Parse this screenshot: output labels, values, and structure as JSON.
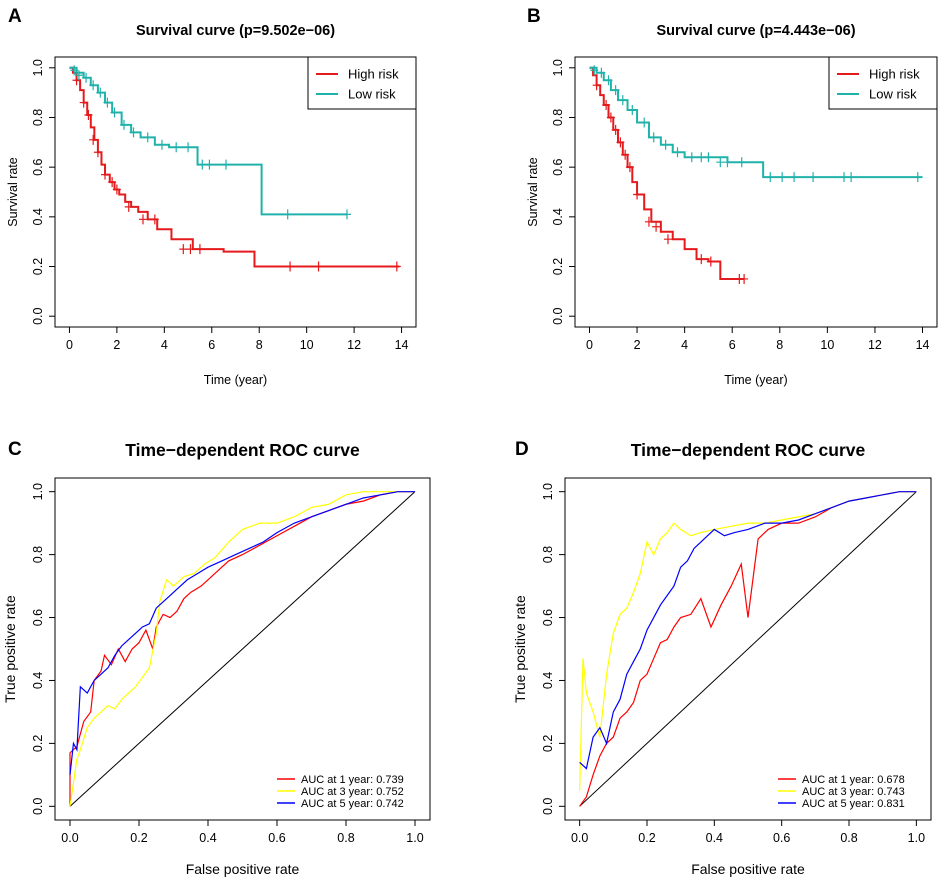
{
  "chart_data": [
    {
      "panel": "A",
      "type": "line",
      "title": "Survival curve (p=9.502e−06)",
      "xlabel": "Time (year)",
      "ylabel": "Survival rate",
      "xlim": [
        0,
        14
      ],
      "ylim": [
        0,
        1
      ],
      "xticks": [
        "0",
        "2",
        "4",
        "6",
        "8",
        "10",
        "12",
        "14"
      ],
      "yticks": [
        "0.0",
        "0.2",
        "0.4",
        "0.6",
        "0.8",
        "1.0"
      ],
      "legend": [
        "High risk",
        "Low risk"
      ],
      "series": [
        {
          "name": "High risk",
          "color": "#e41a1c",
          "x": [
            0,
            0.15,
            0.3,
            0.45,
            0.6,
            0.75,
            0.9,
            1.05,
            1.2,
            1.35,
            1.5,
            1.7,
            1.9,
            2.1,
            2.35,
            2.6,
            2.9,
            3.3,
            3.7,
            4.3,
            5.2,
            6.5,
            7.8,
            13.9
          ],
          "y": [
            1.0,
            0.98,
            0.95,
            0.91,
            0.86,
            0.81,
            0.76,
            0.71,
            0.66,
            0.61,
            0.57,
            0.54,
            0.51,
            0.49,
            0.46,
            0.44,
            0.42,
            0.39,
            0.35,
            0.31,
            0.27,
            0.26,
            0.2,
            0.2
          ],
          "censor_x": [
            0.3,
            0.6,
            0.8,
            1.0,
            1.2,
            1.5,
            1.8,
            2.0,
            2.5,
            3.1,
            3.6,
            4.8,
            5.1,
            5.5,
            9.3,
            10.5,
            13.8
          ],
          "censor_y": [
            0.95,
            0.86,
            0.81,
            0.71,
            0.66,
            0.57,
            0.54,
            0.51,
            0.44,
            0.39,
            0.39,
            0.27,
            0.27,
            0.27,
            0.2,
            0.2,
            0.2
          ]
        },
        {
          "name": "Low risk",
          "color": "#20b2aa",
          "x": [
            0,
            0.3,
            0.6,
            0.9,
            1.2,
            1.5,
            1.8,
            2.2,
            2.6,
            3.0,
            3.6,
            4.2,
            5.4,
            8.1,
            11.7
          ],
          "y": [
            1.0,
            0.98,
            0.96,
            0.93,
            0.9,
            0.86,
            0.82,
            0.77,
            0.74,
            0.72,
            0.69,
            0.68,
            0.61,
            0.41,
            0.41
          ],
          "censor_x": [
            0.2,
            0.4,
            0.7,
            1.0,
            1.3,
            1.6,
            1.9,
            2.3,
            2.7,
            3.3,
            3.9,
            4.5,
            5.0,
            5.6,
            5.9,
            6.6,
            9.2,
            11.7
          ],
          "censor_y": [
            0.99,
            0.97,
            0.96,
            0.93,
            0.9,
            0.86,
            0.82,
            0.77,
            0.74,
            0.72,
            0.69,
            0.68,
            0.68,
            0.61,
            0.61,
            0.61,
            0.41,
            0.41
          ]
        }
      ]
    },
    {
      "panel": "B",
      "type": "line",
      "title": "Survival curve (p=4.443e−06)",
      "xlabel": "Time (year)",
      "ylabel": "Survival rate",
      "xlim": [
        0,
        14
      ],
      "ylim": [
        0,
        1
      ],
      "xticks": [
        "0",
        "2",
        "4",
        "6",
        "8",
        "10",
        "12",
        "14"
      ],
      "yticks": [
        "0.0",
        "0.2",
        "0.4",
        "0.6",
        "0.8",
        "1.0"
      ],
      "legend": [
        "High risk",
        "Low risk"
      ],
      "series": [
        {
          "name": "High risk",
          "color": "#e41a1c",
          "x": [
            0,
            0.15,
            0.3,
            0.45,
            0.6,
            0.8,
            1.0,
            1.2,
            1.4,
            1.6,
            1.8,
            2.0,
            2.3,
            2.6,
            3.0,
            3.5,
            4.0,
            4.5,
            5.0,
            5.5,
            6.5
          ],
          "y": [
            1.0,
            0.97,
            0.93,
            0.89,
            0.85,
            0.8,
            0.75,
            0.7,
            0.65,
            0.6,
            0.54,
            0.49,
            0.43,
            0.38,
            0.34,
            0.31,
            0.27,
            0.23,
            0.22,
            0.15,
            0.15
          ],
          "censor_x": [
            0.3,
            0.7,
            0.9,
            1.1,
            1.3,
            1.5,
            1.7,
            2.0,
            2.5,
            2.8,
            3.3,
            4.7,
            5.1,
            6.3,
            6.5
          ],
          "censor_y": [
            0.93,
            0.85,
            0.8,
            0.75,
            0.7,
            0.65,
            0.6,
            0.49,
            0.38,
            0.36,
            0.31,
            0.23,
            0.22,
            0.15,
            0.15
          ]
        },
        {
          "name": "Low risk",
          "color": "#20b2aa",
          "x": [
            0,
            0.3,
            0.6,
            0.9,
            1.2,
            1.6,
            2.0,
            2.5,
            3.0,
            3.5,
            4.0,
            4.8,
            5.8,
            7.3,
            14
          ],
          "y": [
            1.0,
            0.98,
            0.95,
            0.91,
            0.87,
            0.83,
            0.78,
            0.72,
            0.69,
            0.66,
            0.64,
            0.64,
            0.62,
            0.56,
            0.56
          ],
          "censor_x": [
            0.2,
            0.5,
            0.8,
            1.1,
            1.4,
            1.8,
            2.3,
            2.7,
            3.2,
            3.7,
            4.3,
            4.7,
            5.0,
            5.5,
            5.8,
            6.4,
            7.6,
            8.1,
            8.6,
            9.4,
            10.7,
            11.0,
            13.8
          ],
          "censor_y": [
            0.99,
            0.98,
            0.95,
            0.91,
            0.87,
            0.83,
            0.78,
            0.72,
            0.69,
            0.66,
            0.64,
            0.64,
            0.64,
            0.62,
            0.62,
            0.62,
            0.56,
            0.56,
            0.56,
            0.56,
            0.56,
            0.56,
            0.56
          ]
        }
      ]
    },
    {
      "panel": "C",
      "type": "line",
      "title": "Time−dependent ROC curve",
      "xlabel": "False positive rate",
      "ylabel": "True positive rate",
      "xlim": [
        0,
        1
      ],
      "ylim": [
        0,
        1
      ],
      "xticks": [
        "0.0",
        "0.2",
        "0.4",
        "0.6",
        "0.8",
        "1.0"
      ],
      "yticks": [
        "0.0",
        "0.2",
        "0.4",
        "0.6",
        "0.8",
        "1.0"
      ],
      "legend": [
        "AUC at 1 year: 0.739",
        "AUC at 3 year: 0.752",
        "AUC at 5 year: 0.742"
      ],
      "series": [
        {
          "name": "AUC at 1 year: 0.739",
          "color": "#ff0000",
          "x": [
            0,
            0,
            0.02,
            0.04,
            0.06,
            0.07,
            0.09,
            0.1,
            0.12,
            0.14,
            0.16,
            0.18,
            0.2,
            0.22,
            0.24,
            0.25,
            0.27,
            0.29,
            0.31,
            0.33,
            0.35,
            0.38,
            0.4,
            0.43,
            0.46,
            0.5,
            0.55,
            0.6,
            0.65,
            0.7,
            0.75,
            0.8,
            0.85,
            0.9,
            0.95,
            1.0
          ],
          "y": [
            0,
            0.17,
            0.19,
            0.27,
            0.3,
            0.4,
            0.43,
            0.48,
            0.45,
            0.5,
            0.46,
            0.5,
            0.52,
            0.56,
            0.5,
            0.57,
            0.61,
            0.6,
            0.62,
            0.66,
            0.68,
            0.7,
            0.72,
            0.75,
            0.78,
            0.8,
            0.83,
            0.86,
            0.89,
            0.92,
            0.94,
            0.96,
            0.97,
            0.99,
            1.0,
            1.0
          ]
        },
        {
          "name": "AUC at 3 year: 0.752",
          "color": "#ffff00",
          "x": [
            0,
            0.02,
            0.03,
            0.05,
            0.07,
            0.09,
            0.11,
            0.13,
            0.15,
            0.17,
            0.19,
            0.21,
            0.23,
            0.25,
            0.26,
            0.28,
            0.3,
            0.33,
            0.36,
            0.39,
            0.42,
            0.46,
            0.5,
            0.55,
            0.6,
            0.65,
            0.7,
            0.75,
            0.8,
            0.85,
            0.9,
            0.95,
            1.0
          ],
          "y": [
            0,
            0.15,
            0.18,
            0.25,
            0.28,
            0.3,
            0.32,
            0.31,
            0.34,
            0.36,
            0.38,
            0.41,
            0.44,
            0.55,
            0.65,
            0.72,
            0.7,
            0.73,
            0.74,
            0.77,
            0.79,
            0.84,
            0.88,
            0.9,
            0.9,
            0.92,
            0.95,
            0.96,
            0.99,
            1.0,
            1.0,
            1.0,
            1.0
          ]
        },
        {
          "name": "AUC at 5 year: 0.742",
          "color": "#0000ff",
          "x": [
            0,
            0.01,
            0.02,
            0.03,
            0.05,
            0.07,
            0.09,
            0.11,
            0.13,
            0.15,
            0.17,
            0.19,
            0.21,
            0.23,
            0.25,
            0.27,
            0.29,
            0.31,
            0.34,
            0.37,
            0.4,
            0.44,
            0.48,
            0.52,
            0.56,
            0.6,
            0.65,
            0.7,
            0.75,
            0.8,
            0.85,
            0.9,
            0.95,
            1.0
          ],
          "y": [
            0.1,
            0.2,
            0.18,
            0.38,
            0.36,
            0.4,
            0.42,
            0.44,
            0.48,
            0.51,
            0.53,
            0.55,
            0.57,
            0.58,
            0.63,
            0.65,
            0.67,
            0.69,
            0.72,
            0.74,
            0.76,
            0.78,
            0.8,
            0.82,
            0.84,
            0.87,
            0.9,
            0.92,
            0.94,
            0.96,
            0.98,
            0.99,
            1.0,
            1.0
          ]
        }
      ]
    },
    {
      "panel": "D",
      "type": "line",
      "title": "Time−dependent ROC curve",
      "xlabel": "False positive rate",
      "ylabel": "True positive rate",
      "xlim": [
        0,
        1
      ],
      "ylim": [
        0,
        1
      ],
      "xticks": [
        "0.0",
        "0.2",
        "0.4",
        "0.6",
        "0.8",
        "1.0"
      ],
      "yticks": [
        "0.0",
        "0.2",
        "0.4",
        "0.6",
        "0.8",
        "1.0"
      ],
      "legend": [
        "AUC at 1 year: 0.678",
        "AUC at 3 year: 0.743",
        "AUC at 5 year: 0.831"
      ],
      "series": [
        {
          "name": "AUC at 1 year: 0.678",
          "color": "#ff0000",
          "x": [
            0,
            0.02,
            0.04,
            0.06,
            0.08,
            0.1,
            0.12,
            0.14,
            0.16,
            0.18,
            0.2,
            0.22,
            0.24,
            0.26,
            0.28,
            0.3,
            0.33,
            0.36,
            0.39,
            0.42,
            0.45,
            0.48,
            0.5,
            0.53,
            0.56,
            0.6,
            0.65,
            0.7,
            0.75,
            0.8,
            0.85,
            0.9,
            0.95,
            1.0
          ],
          "y": [
            0,
            0.03,
            0.1,
            0.16,
            0.2,
            0.22,
            0.28,
            0.3,
            0.33,
            0.4,
            0.42,
            0.47,
            0.52,
            0.53,
            0.57,
            0.6,
            0.61,
            0.66,
            0.57,
            0.64,
            0.7,
            0.77,
            0.6,
            0.85,
            0.88,
            0.9,
            0.9,
            0.92,
            0.95,
            0.97,
            0.98,
            0.99,
            1.0,
            1.0
          ]
        },
        {
          "name": "AUC at 3 year: 0.743",
          "color": "#ffff00",
          "x": [
            0,
            0.01,
            0.02,
            0.04,
            0.06,
            0.08,
            0.1,
            0.12,
            0.14,
            0.16,
            0.18,
            0.2,
            0.22,
            0.24,
            0.26,
            0.28,
            0.3,
            0.33,
            0.36,
            0.4,
            0.45,
            0.5,
            0.55,
            0.6,
            0.65,
            0.7,
            0.75,
            0.8,
            0.85,
            0.9,
            0.95,
            1.0
          ],
          "y": [
            0.05,
            0.47,
            0.36,
            0.3,
            0.22,
            0.42,
            0.55,
            0.61,
            0.63,
            0.68,
            0.74,
            0.84,
            0.8,
            0.85,
            0.87,
            0.9,
            0.88,
            0.86,
            0.87,
            0.88,
            0.89,
            0.9,
            0.9,
            0.91,
            0.92,
            0.93,
            0.95,
            0.97,
            0.98,
            0.99,
            1.0,
            1.0
          ]
        },
        {
          "name": "AUC at 5 year: 0.831",
          "color": "#0000ff",
          "x": [
            0,
            0.02,
            0.04,
            0.06,
            0.08,
            0.1,
            0.12,
            0.14,
            0.16,
            0.18,
            0.2,
            0.22,
            0.24,
            0.26,
            0.28,
            0.3,
            0.32,
            0.34,
            0.36,
            0.38,
            0.4,
            0.43,
            0.46,
            0.5,
            0.55,
            0.6,
            0.65,
            0.7,
            0.75,
            0.8,
            0.85,
            0.9,
            0.95,
            1.0
          ],
          "y": [
            0.14,
            0.12,
            0.22,
            0.25,
            0.2,
            0.3,
            0.34,
            0.42,
            0.46,
            0.5,
            0.56,
            0.6,
            0.64,
            0.67,
            0.7,
            0.76,
            0.78,
            0.82,
            0.84,
            0.86,
            0.88,
            0.86,
            0.87,
            0.88,
            0.9,
            0.9,
            0.91,
            0.93,
            0.95,
            0.97,
            0.98,
            0.99,
            1.0,
            1.0
          ]
        }
      ]
    }
  ]
}
